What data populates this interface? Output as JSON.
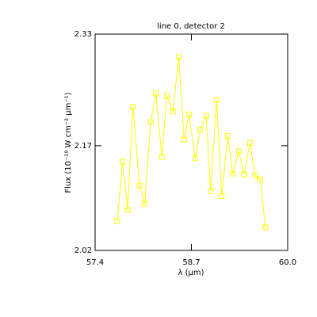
{
  "chart_data": {
    "type": "line",
    "title": "line 0, detector 2",
    "xlabel": "λ (μm)",
    "ylabel": "Flux (10⁻¹⁸ W cm⁻² μm⁻¹)",
    "x": [
      57.7,
      57.77,
      57.84,
      57.91,
      58.0,
      58.07,
      58.15,
      58.22,
      58.3,
      58.37,
      58.45,
      58.53,
      58.6,
      58.67,
      58.75,
      58.82,
      58.9,
      58.96,
      59.04,
      59.11,
      59.19,
      59.26,
      59.34,
      59.41,
      59.49,
      59.56,
      59.63,
      59.7
    ],
    "series": [
      {
        "color": "#ffff00",
        "values": [
          2.062,
          2.147,
          2.078,
          2.226,
          2.113,
          2.087,
          2.204,
          2.245,
          2.154,
          2.241,
          2.219,
          2.297,
          2.179,
          2.215,
          2.152,
          2.193,
          2.213,
          2.105,
          2.236,
          2.098,
          2.184,
          2.13,
          2.162,
          2.129,
          2.174,
          2.127,
          2.122,
          2.053
        ]
      }
    ],
    "xlim": [
      57.4,
      60.0
    ],
    "xticks": [
      57.4,
      58.7,
      {
        "value": 60.0,
        "label": "60.0"
      }
    ],
    "ylim": [
      2.02,
      2.33
    ],
    "yticks": [
      2.02,
      2.17,
      2.33
    ],
    "marker": "square"
  }
}
